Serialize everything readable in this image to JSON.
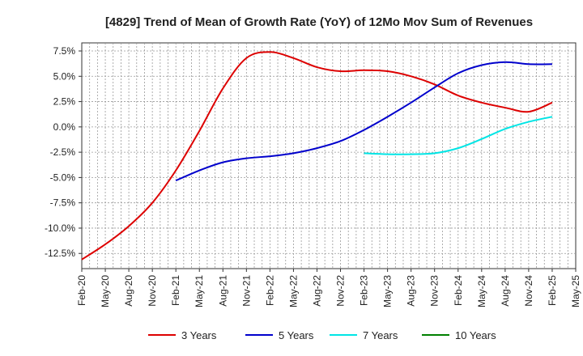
{
  "chart_data": {
    "type": "line",
    "title": "[4829]  Trend of Mean of Growth Rate (YoY) of 12Mo Mov Sum of Revenues",
    "xlabel": "",
    "ylabel": "",
    "x_ticks": [
      "Feb-20",
      "May-20",
      "Aug-20",
      "Nov-20",
      "Feb-21",
      "May-21",
      "Aug-21",
      "Nov-21",
      "Feb-22",
      "May-22",
      "Aug-22",
      "Nov-22",
      "Feb-23",
      "May-23",
      "Aug-23",
      "Nov-23",
      "Feb-24",
      "May-24",
      "Aug-24",
      "Nov-24",
      "Feb-25",
      "May-25"
    ],
    "y_ticks": [
      7.5,
      5.0,
      2.5,
      0.0,
      -2.5,
      -5.0,
      -7.5,
      -10.0,
      -12.5
    ],
    "y_tick_labels": [
      "7.5%",
      "5.0%",
      "2.5%",
      "0.0%",
      "-2.5%",
      "-5.0%",
      "-7.5%",
      "-10.0%",
      "-12.5%"
    ],
    "ylim": [
      -14.0,
      8.3
    ],
    "xlim": [
      0,
      63
    ],
    "grid": true,
    "legend_position": "bottom",
    "series": [
      {
        "name": "3 Years",
        "color": "#dd0000",
        "x": [
          0,
          3,
          6,
          9,
          12,
          15,
          18,
          21,
          24,
          27,
          30,
          33,
          36,
          39,
          42,
          45,
          48,
          51,
          54,
          57,
          60
        ],
        "values": [
          -13.1,
          -11.6,
          -9.8,
          -7.5,
          -4.3,
          -0.4,
          3.8,
          6.8,
          7.4,
          6.8,
          5.9,
          5.5,
          5.6,
          5.5,
          5.0,
          4.2,
          3.1,
          2.4,
          1.9,
          1.5,
          2.4
        ]
      },
      {
        "name": "5 Years",
        "color": "#0000cc",
        "x": [
          12,
          15,
          18,
          21,
          24,
          27,
          30,
          33,
          36,
          39,
          42,
          45,
          48,
          51,
          54,
          57,
          60
        ],
        "values": [
          -5.3,
          -4.3,
          -3.5,
          -3.1,
          -2.9,
          -2.6,
          -2.1,
          -1.4,
          -0.3,
          1.0,
          2.4,
          3.9,
          5.3,
          6.1,
          6.4,
          6.2,
          6.2
        ]
      },
      {
        "name": "7 Years",
        "color": "#00e5e5",
        "x": [
          36,
          39,
          42,
          45,
          48,
          51,
          54,
          57,
          60
        ],
        "values": [
          -2.6,
          -2.7,
          -2.7,
          -2.6,
          -2.1,
          -1.2,
          -0.2,
          0.5,
          1.0
        ]
      },
      {
        "name": "10 Years",
        "color": "#008000",
        "x": [],
        "values": []
      }
    ]
  }
}
